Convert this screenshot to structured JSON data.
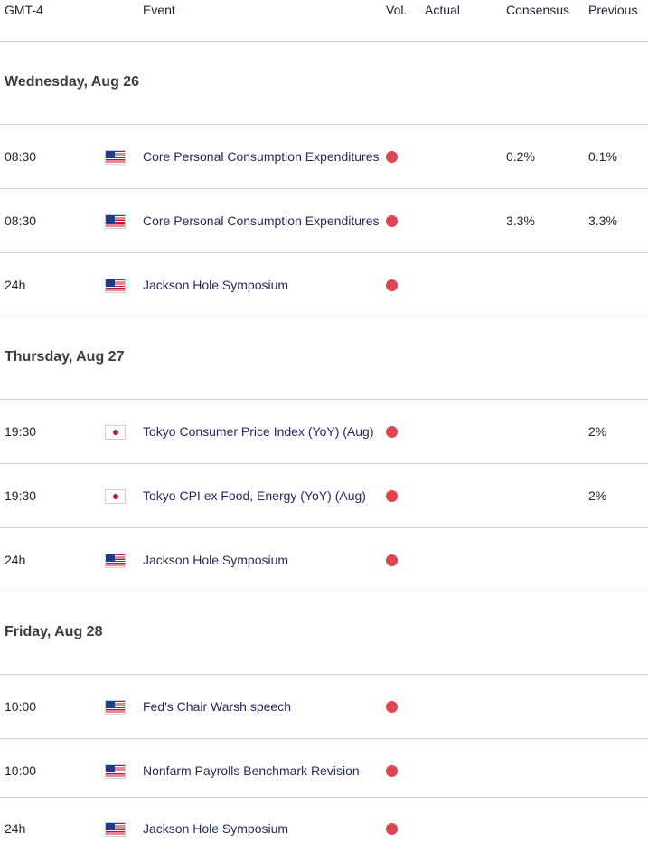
{
  "header": {
    "timezone": "GMT-4",
    "event": "Event",
    "vol": "Vol.",
    "actual": "Actual",
    "consensus": "Consensus",
    "previous": "Previous"
  },
  "days": [
    {
      "label": "Wednesday, Aug 26",
      "events": [
        {
          "time": "08:30",
          "flag": "us-flag-icon",
          "name": "Core Personal Consumption Expenditures",
          "volatility": "high",
          "actual": "",
          "consensus": "0.2%",
          "previous": "0.1%"
        },
        {
          "time": "08:30",
          "flag": "us-flag-icon",
          "name": "Core Personal Consumption Expenditures",
          "volatility": "high",
          "actual": "",
          "consensus": "3.3%",
          "previous": "3.3%"
        },
        {
          "time": "24h",
          "flag": "us-flag-icon",
          "name": "Jackson Hole Symposium",
          "volatility": "high",
          "actual": "",
          "consensus": "",
          "previous": ""
        }
      ]
    },
    {
      "label": "Thursday, Aug 27",
      "events": [
        {
          "time": "19:30",
          "flag": "jp-flag-icon",
          "name": "Tokyo Consumer Price Index (YoY) (Aug)",
          "volatility": "high",
          "actual": "",
          "consensus": "",
          "previous": "2%"
        },
        {
          "time": "19:30",
          "flag": "jp-flag-icon",
          "name": "Tokyo CPI ex Food, Energy (YoY) (Aug)",
          "volatility": "high",
          "actual": "",
          "consensus": "",
          "previous": "2%"
        },
        {
          "time": "24h",
          "flag": "us-flag-icon",
          "name": "Jackson Hole Symposium",
          "volatility": "high",
          "actual": "",
          "consensus": "",
          "previous": ""
        }
      ]
    },
    {
      "label": "Friday, Aug 28",
      "events": [
        {
          "time": "10:00",
          "flag": "us-flag-icon",
          "name": "Fed's Chair Warsh speech",
          "volatility": "high",
          "actual": "",
          "consensus": "",
          "previous": ""
        },
        {
          "time": "10:00",
          "flag": "us-flag-icon",
          "name": "Nonfarm Payrolls Benchmark Revision",
          "volatility": "high",
          "actual": "",
          "consensus": "",
          "previous": ""
        },
        {
          "time": "24h",
          "flag": "us-flag-icon",
          "name": "Jackson Hole Symposium",
          "volatility": "high",
          "actual": "",
          "consensus": "",
          "previous": ""
        }
      ]
    }
  ],
  "colors": {
    "high_volatility": "#e0444f",
    "event_text": "#1f2a5c",
    "divider": "#cfcfcf"
  }
}
